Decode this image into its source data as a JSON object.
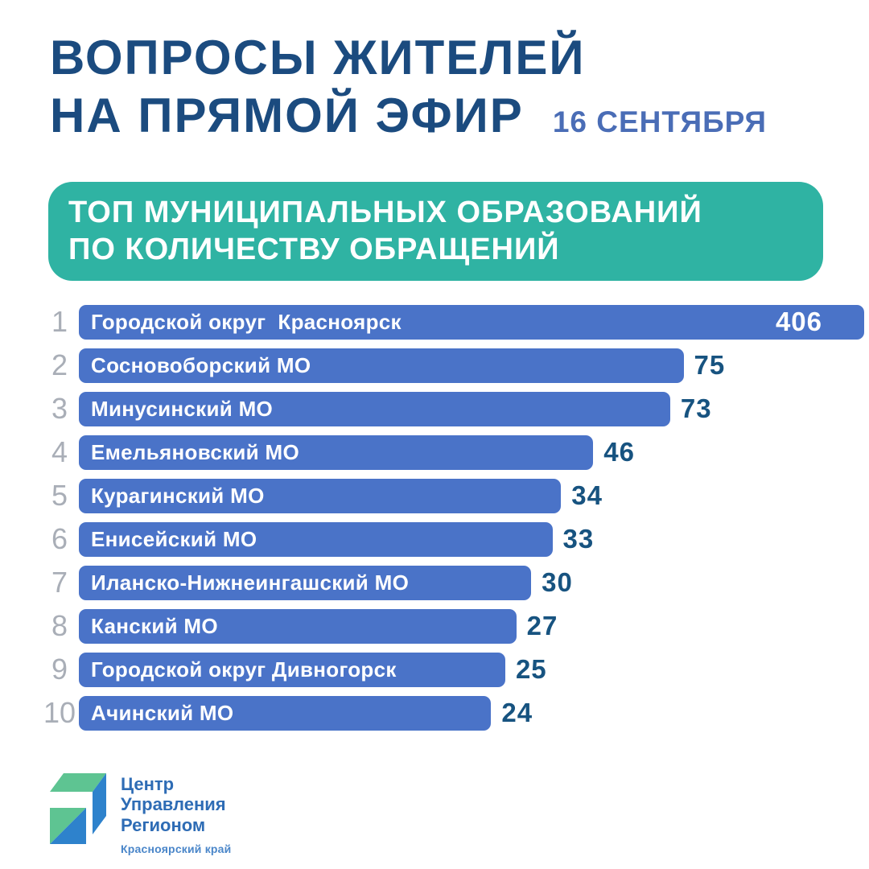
{
  "theme": {
    "background": "#ffffff",
    "navy": "#1b4b7f",
    "date_blue": "#4a6db6",
    "teal": "#2fb3a3",
    "bar_blue": "#4a73c8",
    "value_blue": "#175380",
    "rank_gray": "#a9aeb7",
    "logo_blue": "#2e6cb5",
    "logo_sub_blue": "#4a86c9",
    "logo_green": "#5ec492",
    "logo_face_blue": "#2e82cc"
  },
  "header": {
    "title_line1": "ВОПРОСЫ ЖИТЕЛЕЙ",
    "title_line2": "НА ПРЯМОЙ ЭФИР",
    "date": "16 СЕНТЯБРЯ"
  },
  "banner": {
    "line1": "ТОП МУНИЦИПАЛЬНЫХ ОБРАЗОВАНИЙ",
    "line2": "ПО КОЛИЧЕСТВУ ОБРАЩЕНИЙ"
  },
  "chart_data": {
    "type": "bar",
    "orientation": "horizontal",
    "title": "ТОП МУНИЦИПАЛЬНЫХ ОБРАЗОВАНИЙ ПО КОЛИЧЕСТВУ ОБРАЩЕНИЙ",
    "ranks": [
      1,
      2,
      3,
      4,
      5,
      6,
      7,
      8,
      9,
      10
    ],
    "categories": [
      "Городской округ  Красноярск",
      "Сосновоборский МО",
      "Минусинский МО",
      "Емельяновский МО",
      "Курагинский МО",
      "Енисейский МО",
      "Иланско-Нижнеингашский МО",
      "Канский МО",
      "Городской округ Дивногорск",
      "Ачинский МО"
    ],
    "values": [
      406,
      75,
      73,
      46,
      34,
      33,
      30,
      27,
      25,
      24
    ],
    "xlim": [
      0,
      406
    ],
    "grid": false,
    "legend": false,
    "value_label_position": "end-of-bar",
    "bar_width_pct": [
      100,
      77,
      75.3,
      65.5,
      61.4,
      60.3,
      57.6,
      55.7,
      54.3,
      52.5
    ],
    "value_inside": [
      true,
      false,
      false,
      false,
      false,
      false,
      false,
      false,
      false,
      false
    ]
  },
  "footer": {
    "logo": {
      "line1": "Центр",
      "line2": "Управления",
      "line3": "Регионом",
      "subtitle": "Красноярский край"
    }
  }
}
